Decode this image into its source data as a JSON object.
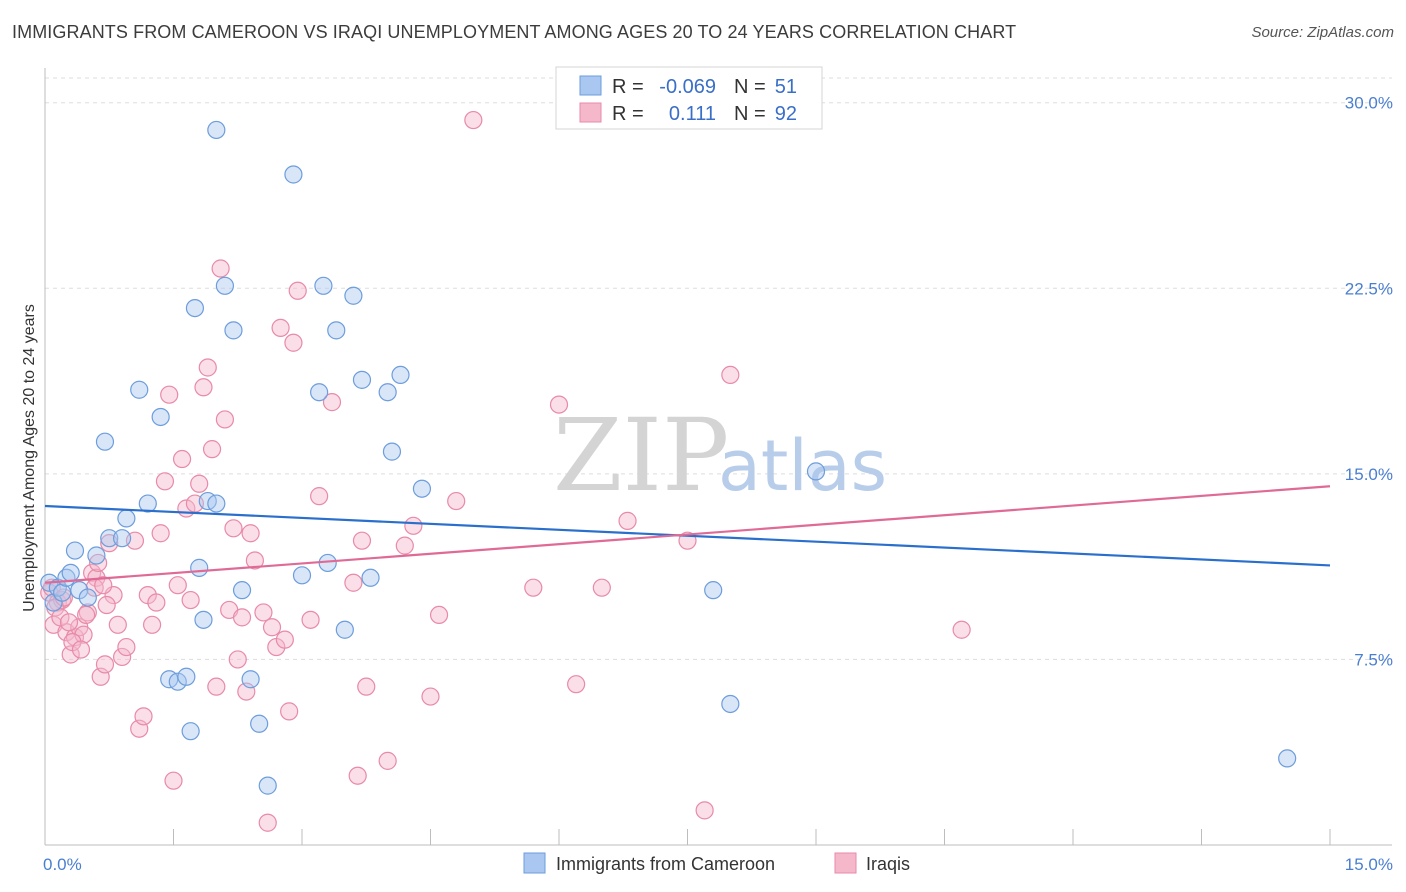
{
  "title": "IMMIGRANTS FROM CAMEROON VS IRAQI UNEMPLOYMENT AMONG AGES 20 TO 24 YEARS CORRELATION CHART",
  "source": "Source: ZipAtlas.com",
  "watermark": {
    "zip": "ZIP",
    "atlas": "atlas"
  },
  "colors": {
    "blue_fill": "#a9c7f0",
    "blue_stroke": "#6d9ddc",
    "blue_line": "#2a6fcc",
    "pink_fill": "#f5b8cb",
    "pink_stroke": "#e88aa8",
    "pink_line": "#e06a96",
    "axis_text": "#4a7fd0",
    "grid": "#dddddd"
  },
  "legend": {
    "rows": [
      {
        "r_label": "R =",
        "r_value": "-0.069",
        "n_label": "N =",
        "n_value": "51",
        "color": "blue"
      },
      {
        "r_label": "R =",
        "r_value": "0.111",
        "n_label": "N =",
        "n_value": "92",
        "color": "pink"
      }
    ]
  },
  "bottom_legend": [
    {
      "label": "Immigrants from Cameroon",
      "color": "blue"
    },
    {
      "label": "Iraqis",
      "color": "pink"
    }
  ],
  "chart_data": {
    "type": "scatter",
    "title": "IMMIGRANTS FROM CAMEROON VS IRAQI UNEMPLOYMENT AMONG AGES 20 TO 24 YEARS CORRELATION CHART",
    "xlabel": "",
    "ylabel": "Unemployment Among Ages 20 to 24 years",
    "xlim": [
      0,
      15
    ],
    "ylim": [
      0,
      31
    ],
    "x_tick_labels": [
      {
        "value": 0,
        "label": "0.0%"
      },
      {
        "value": 15,
        "label": "15.0%"
      }
    ],
    "y_tick_labels": [
      {
        "value": 7.5,
        "label": "7.5%"
      },
      {
        "value": 15,
        "label": "15.0%"
      },
      {
        "value": 22.5,
        "label": "22.5%"
      },
      {
        "value": 30,
        "label": "30.0%"
      }
    ],
    "x_minor_ticks": [
      1.5,
      3.0,
      4.5,
      6.0,
      7.5,
      9.0,
      10.5,
      12.0,
      13.5,
      15.0
    ],
    "grid": true,
    "series": [
      {
        "name": "Immigrants from Cameroon",
        "color": "blue",
        "trend": {
          "x0": 0,
          "y0": 13.7,
          "x1": 15,
          "y1": 11.3
        },
        "points": [
          [
            0.05,
            10.6
          ],
          [
            0.1,
            9.8
          ],
          [
            0.15,
            10.4
          ],
          [
            0.2,
            10.2
          ],
          [
            0.25,
            10.8
          ],
          [
            0.3,
            11.0
          ],
          [
            0.35,
            11.9
          ],
          [
            0.4,
            10.3
          ],
          [
            0.5,
            10.0
          ],
          [
            0.6,
            11.7
          ],
          [
            0.7,
            16.3
          ],
          [
            0.75,
            12.4
          ],
          [
            0.9,
            12.4
          ],
          [
            0.95,
            13.2
          ],
          [
            1.1,
            18.4
          ],
          [
            1.2,
            13.8
          ],
          [
            1.35,
            17.3
          ],
          [
            1.45,
            6.7
          ],
          [
            1.55,
            6.6
          ],
          [
            1.65,
            6.8
          ],
          [
            1.7,
            4.6
          ],
          [
            1.75,
            21.7
          ],
          [
            1.8,
            11.2
          ],
          [
            1.85,
            9.1
          ],
          [
            1.9,
            13.9
          ],
          [
            2.0,
            13.8
          ],
          [
            2.0,
            28.9
          ],
          [
            2.1,
            22.6
          ],
          [
            2.2,
            20.8
          ],
          [
            2.3,
            10.3
          ],
          [
            2.4,
            6.7
          ],
          [
            2.5,
            4.9
          ],
          [
            2.6,
            2.4
          ],
          [
            2.9,
            27.1
          ],
          [
            3.0,
            10.9
          ],
          [
            3.2,
            18.3
          ],
          [
            3.25,
            22.6
          ],
          [
            3.3,
            11.4
          ],
          [
            3.4,
            20.8
          ],
          [
            3.5,
            8.7
          ],
          [
            3.6,
            22.2
          ],
          [
            3.7,
            18.8
          ],
          [
            3.8,
            10.8
          ],
          [
            4.0,
            18.3
          ],
          [
            4.05,
            15.9
          ],
          [
            4.15,
            19.0
          ],
          [
            4.4,
            14.4
          ],
          [
            7.8,
            10.3
          ],
          [
            8.0,
            5.7
          ],
          [
            9.0,
            15.1
          ],
          [
            14.5,
            3.5
          ]
        ]
      },
      {
        "name": "Iraqis",
        "color": "pink",
        "trend": {
          "x0": 0,
          "y0": 10.6,
          "x1": 15,
          "y1": 14.5
        },
        "points": [
          [
            0.05,
            10.2
          ],
          [
            0.1,
            8.9
          ],
          [
            0.15,
            9.8
          ],
          [
            0.2,
            9.9
          ],
          [
            0.25,
            8.6
          ],
          [
            0.3,
            7.7
          ],
          [
            0.35,
            8.4
          ],
          [
            0.4,
            8.8
          ],
          [
            0.45,
            8.5
          ],
          [
            0.5,
            9.4
          ],
          [
            0.55,
            11.0
          ],
          [
            0.6,
            10.8
          ],
          [
            0.65,
            6.8
          ],
          [
            0.7,
            7.3
          ],
          [
            0.75,
            12.2
          ],
          [
            0.8,
            10.1
          ],
          [
            0.85,
            8.9
          ],
          [
            0.9,
            7.6
          ],
          [
            0.95,
            8.0
          ],
          [
            1.05,
            12.3
          ],
          [
            1.1,
            4.7
          ],
          [
            1.15,
            5.2
          ],
          [
            1.2,
            10.1
          ],
          [
            1.25,
            8.9
          ],
          [
            1.3,
            9.8
          ],
          [
            1.35,
            12.6
          ],
          [
            1.4,
            14.7
          ],
          [
            1.45,
            18.2
          ],
          [
            1.5,
            2.6
          ],
          [
            1.55,
            10.5
          ],
          [
            1.6,
            15.6
          ],
          [
            1.65,
            13.6
          ],
          [
            1.7,
            9.9
          ],
          [
            1.75,
            13.8
          ],
          [
            1.8,
            14.6
          ],
          [
            1.85,
            18.5
          ],
          [
            1.9,
            19.3
          ],
          [
            1.95,
            16.0
          ],
          [
            2.0,
            6.4
          ],
          [
            2.05,
            23.3
          ],
          [
            2.1,
            17.2
          ],
          [
            2.15,
            9.5
          ],
          [
            2.2,
            12.8
          ],
          [
            2.25,
            7.5
          ],
          [
            2.3,
            9.2
          ],
          [
            2.35,
            6.2
          ],
          [
            2.4,
            12.6
          ],
          [
            2.45,
            11.5
          ],
          [
            2.55,
            9.4
          ],
          [
            2.6,
            0.9
          ],
          [
            2.65,
            8.8
          ],
          [
            2.7,
            8.0
          ],
          [
            2.75,
            20.9
          ],
          [
            2.8,
            8.3
          ],
          [
            2.85,
            5.4
          ],
          [
            2.9,
            20.3
          ],
          [
            2.95,
            22.4
          ],
          [
            3.1,
            9.1
          ],
          [
            3.2,
            14.1
          ],
          [
            3.35,
            17.9
          ],
          [
            3.6,
            10.6
          ],
          [
            3.65,
            2.8
          ],
          [
            3.7,
            12.3
          ],
          [
            3.75,
            6.4
          ],
          [
            4.0,
            3.4
          ],
          [
            4.2,
            12.1
          ],
          [
            4.3,
            12.9
          ],
          [
            4.5,
            6.0
          ],
          [
            4.6,
            9.3
          ],
          [
            4.8,
            13.9
          ],
          [
            5.0,
            29.3
          ],
          [
            5.7,
            10.4
          ],
          [
            6.0,
            17.8
          ],
          [
            6.2,
            6.5
          ],
          [
            6.5,
            10.4
          ],
          [
            6.8,
            13.1
          ],
          [
            7.5,
            12.3
          ],
          [
            7.7,
            1.4
          ],
          [
            8.0,
            19.0
          ],
          [
            10.7,
            8.7
          ],
          [
            0.08,
            10.4
          ],
          [
            0.12,
            9.6
          ],
          [
            0.18,
            9.2
          ],
          [
            0.22,
            10.0
          ],
          [
            0.28,
            9.0
          ],
          [
            0.32,
            8.2
          ],
          [
            0.42,
            7.9
          ],
          [
            0.48,
            9.3
          ],
          [
            0.58,
            10.4
          ],
          [
            0.62,
            11.4
          ],
          [
            0.68,
            10.5
          ],
          [
            0.72,
            9.7
          ]
        ]
      }
    ]
  }
}
